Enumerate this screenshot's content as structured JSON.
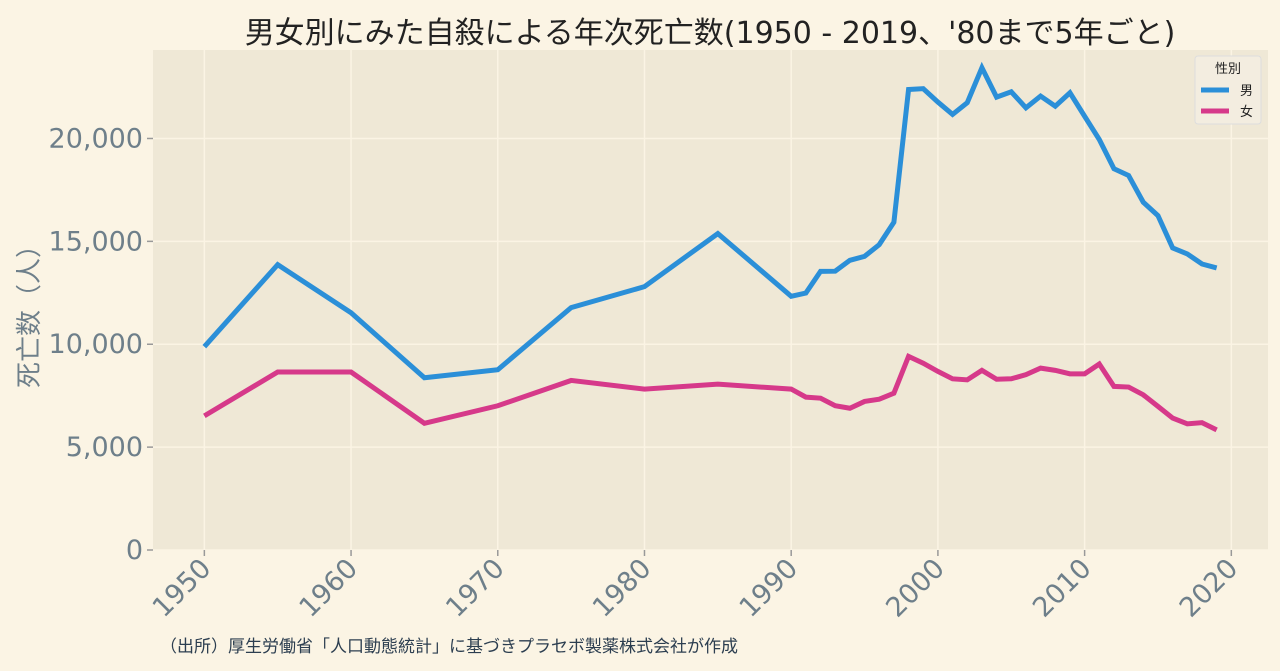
{
  "chart_data": {
    "type": "line",
    "title": "男女別にみた自殺による年次死亡数(1950 - 2019、'80まで5年ごと)",
    "xlabel": "",
    "ylabel": "死亡数（人）",
    "xlim": [
      1946.5,
      2022.5
    ],
    "ylim": [
      0,
      24300
    ],
    "xticks": [
      "1950",
      "1960",
      "1970",
      "1980",
      "1990",
      "2000",
      "2010",
      "2020"
    ],
    "yticks": [
      "0",
      "5,000",
      "10,000",
      "15,000",
      "20,000"
    ],
    "grid": true,
    "legend": {
      "title": "性別",
      "position": "top-right"
    },
    "x": [
      1950,
      1955,
      1960,
      1965,
      1970,
      1975,
      1980,
      1985,
      1990,
      1991,
      1992,
      1993,
      1994,
      1995,
      1996,
      1997,
      1998,
      1999,
      2000,
      2001,
      2002,
      2003,
      2004,
      2005,
      2006,
      2007,
      2008,
      2009,
      2010,
      2011,
      2012,
      2013,
      2014,
      2015,
      2016,
      2017,
      2018,
      2019
    ],
    "series": [
      {
        "name": "男",
        "color": "#2b8fd8",
        "values": [
          9880,
          13870,
          11530,
          8370,
          8760,
          11780,
          12800,
          15380,
          12330,
          12490,
          13540,
          13550,
          14080,
          14270,
          14840,
          15930,
          22380,
          22420,
          21770,
          21170,
          21740,
          23440,
          22010,
          22270,
          21490,
          22060,
          21570,
          22220,
          21080,
          19950,
          18530,
          18200,
          16900,
          16250,
          14680,
          14390,
          13900,
          13710
        ]
      },
      {
        "name": "女",
        "color": "#d6398a",
        "values": [
          6520,
          8650,
          8650,
          6160,
          7010,
          8240,
          7820,
          8060,
          7820,
          7430,
          7380,
          7010,
          6890,
          7220,
          7330,
          7620,
          9410,
          9080,
          8680,
          8320,
          8270,
          8730,
          8300,
          8320,
          8520,
          8840,
          8730,
          8560,
          8560,
          9040,
          7950,
          7920,
          7540,
          6980,
          6410,
          6130,
          6190,
          5840
        ]
      }
    ]
  },
  "source": "（出所）厚生労働省「人口動態統計」に基づきプラセボ製薬株式会社が作成"
}
